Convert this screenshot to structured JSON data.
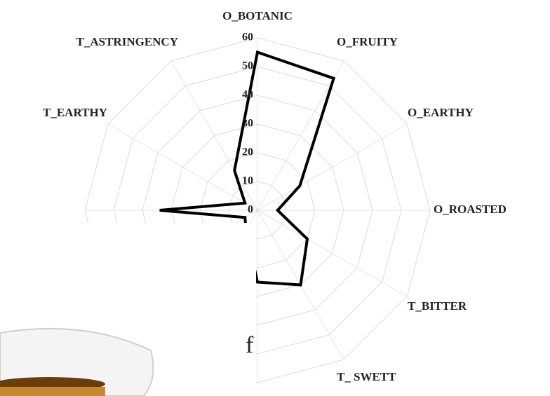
{
  "chart_data": {
    "type": "radar",
    "categories": [
      "O_BOTANIC",
      "O_FRUITY",
      "O_EARTHY",
      "O_ROASTED",
      "T_BITTER",
      "T_ SWETT",
      null,
      null,
      null,
      null,
      "T_EARTHY",
      "T_ASTRINGENCY"
    ],
    "values": [
      55,
      53,
      17,
      7,
      20,
      30,
      25,
      8,
      5,
      34,
      5,
      16
    ],
    "color": "#000000",
    "ylim": [
      0,
      60
    ],
    "yticks": [
      0,
      10,
      20,
      30,
      40,
      50,
      60
    ],
    "grid": true
  },
  "overlay_text": "f"
}
